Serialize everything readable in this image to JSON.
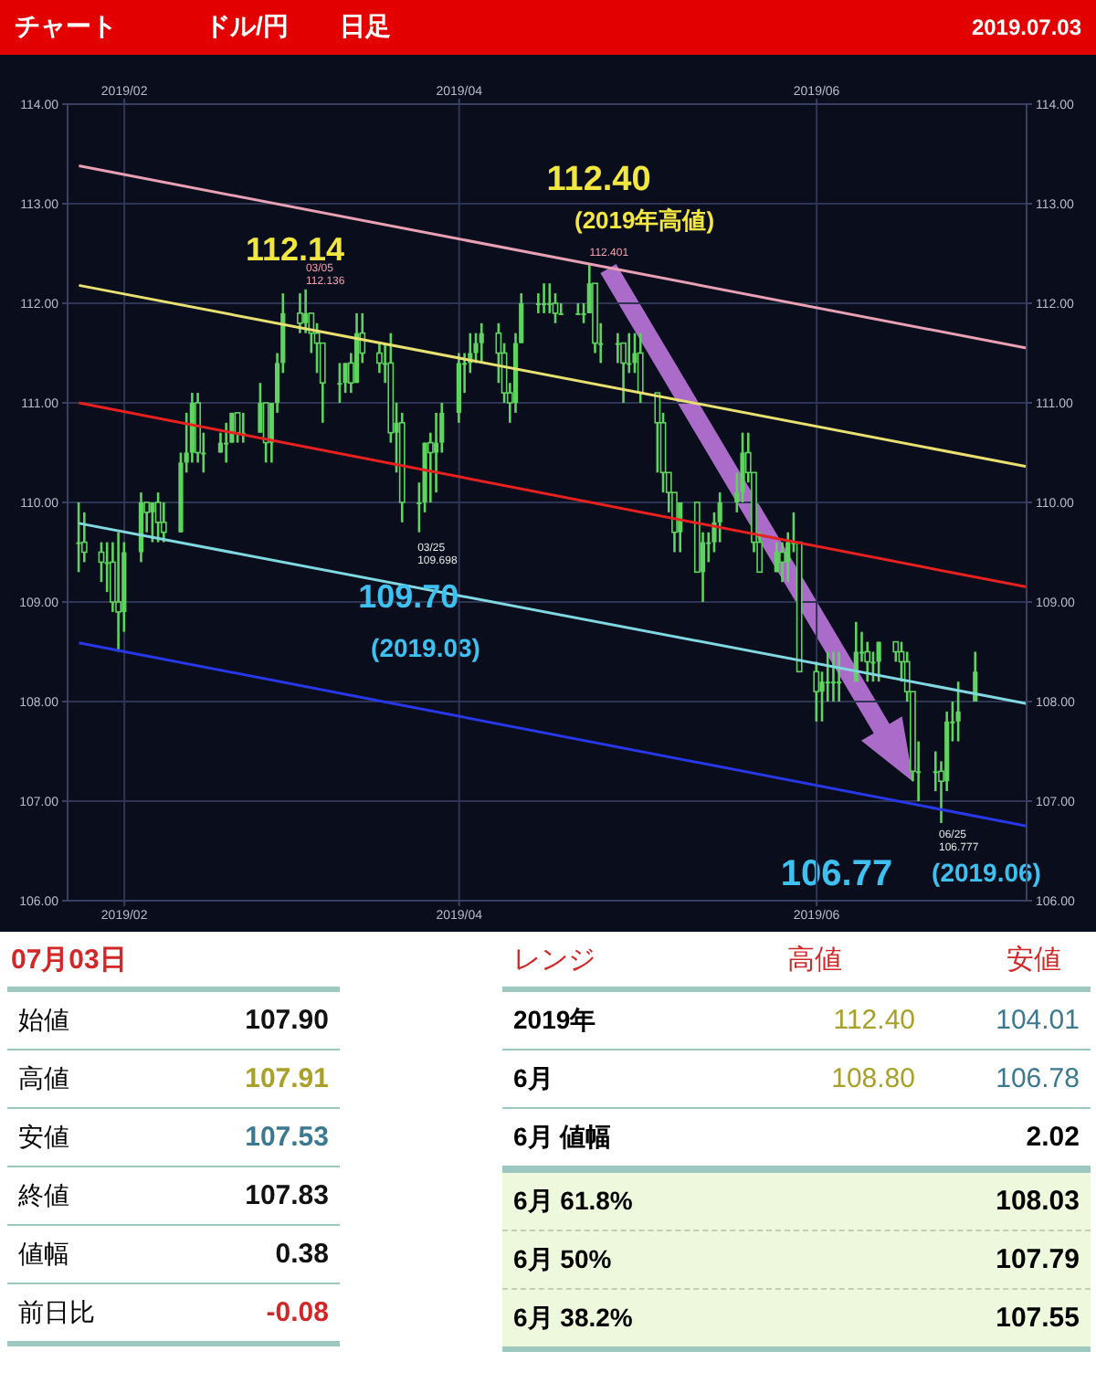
{
  "chart_data": {
    "type": "candlestick",
    "title": "ドル/円",
    "subtitle": "日足",
    "color": "#5fd35f",
    "x": [
      "2019-01-24",
      "2019-01-25",
      "2019-01-28",
      "2019-01-29",
      "2019-01-30",
      "2019-01-31",
      "2019-02-01",
      "2019-02-04",
      "2019-02-05",
      "2019-02-06",
      "2019-02-07",
      "2019-02-08",
      "2019-02-11",
      "2019-02-12",
      "2019-02-13",
      "2019-02-14",
      "2019-02-15",
      "2019-02-18",
      "2019-02-19",
      "2019-02-20",
      "2019-02-21",
      "2019-02-22",
      "2019-02-25",
      "2019-02-26",
      "2019-02-27",
      "2019-02-28",
      "2019-03-01",
      "2019-03-04",
      "2019-03-05",
      "2019-03-06",
      "2019-03-07",
      "2019-03-08",
      "2019-03-11",
      "2019-03-12",
      "2019-03-13",
      "2019-03-14",
      "2019-03-15",
      "2019-03-18",
      "2019-03-19",
      "2019-03-20",
      "2019-03-21",
      "2019-03-22",
      "2019-03-25",
      "2019-03-26",
      "2019-03-27",
      "2019-03-28",
      "2019-03-29",
      "2019-04-01",
      "2019-04-02",
      "2019-04-03",
      "2019-04-04",
      "2019-04-05",
      "2019-04-08",
      "2019-04-09",
      "2019-04-10",
      "2019-04-11",
      "2019-04-12",
      "2019-04-15",
      "2019-04-16",
      "2019-04-17",
      "2019-04-18",
      "2019-04-19",
      "2019-04-22",
      "2019-04-23",
      "2019-04-24",
      "2019-04-25",
      "2019-04-26",
      "2019-04-29",
      "2019-04-30",
      "2019-05-01",
      "2019-05-02",
      "2019-05-03",
      "2019-05-06",
      "2019-05-07",
      "2019-05-08",
      "2019-05-09",
      "2019-05-10",
      "2019-05-13",
      "2019-05-14",
      "2019-05-15",
      "2019-05-16",
      "2019-05-17",
      "2019-05-20",
      "2019-05-21",
      "2019-05-22",
      "2019-05-23",
      "2019-05-24",
      "2019-05-27",
      "2019-05-28",
      "2019-05-29",
      "2019-05-30",
      "2019-05-31",
      "2019-06-03",
      "2019-06-04",
      "2019-06-05",
      "2019-06-06",
      "2019-06-07",
      "2019-06-10",
      "2019-06-11",
      "2019-06-12",
      "2019-06-13",
      "2019-06-14",
      "2019-06-17",
      "2019-06-18",
      "2019-06-19",
      "2019-06-20",
      "2019-06-21",
      "2019-06-24",
      "2019-06-25",
      "2019-06-26",
      "2019-06-27",
      "2019-06-28",
      "2019-07-01"
    ],
    "ohlc": [
      [
        109.6,
        110.0,
        109.3,
        109.6
      ],
      [
        109.6,
        109.9,
        109.4,
        109.5
      ],
      [
        109.5,
        109.6,
        109.2,
        109.4
      ],
      [
        109.4,
        109.6,
        109.1,
        109.4
      ],
      [
        109.4,
        109.6,
        108.9,
        109.0
      ],
      [
        109.0,
        109.7,
        108.5,
        108.9
      ],
      [
        108.9,
        109.6,
        108.7,
        109.5
      ],
      [
        109.5,
        110.1,
        109.4,
        110.0
      ],
      [
        110.0,
        110.0,
        109.7,
        109.9
      ],
      [
        109.9,
        110.0,
        109.6,
        110.0
      ],
      [
        110.0,
        110.1,
        109.6,
        109.8
      ],
      [
        109.8,
        110.0,
        109.6,
        109.7
      ],
      [
        109.7,
        110.5,
        109.7,
        110.4
      ],
      [
        110.4,
        110.9,
        110.3,
        110.5
      ],
      [
        110.5,
        111.1,
        110.4,
        111.0
      ],
      [
        111.0,
        111.1,
        110.4,
        110.5
      ],
      [
        110.5,
        110.7,
        110.3,
        110.5
      ],
      [
        110.5,
        110.7,
        110.5,
        110.6
      ],
      [
        110.6,
        110.8,
        110.4,
        110.6
      ],
      [
        110.6,
        110.9,
        110.6,
        110.9
      ],
      [
        110.9,
        110.9,
        110.6,
        110.7
      ],
      [
        110.7,
        110.9,
        110.6,
        110.7
      ],
      [
        110.7,
        111.2,
        110.7,
        111.0
      ],
      [
        111.0,
        111.0,
        110.4,
        110.6
      ],
      [
        110.6,
        111.0,
        110.4,
        111.0
      ],
      [
        111.0,
        111.5,
        110.9,
        111.4
      ],
      [
        111.4,
        112.1,
        111.3,
        111.9
      ],
      [
        111.9,
        112.1,
        111.7,
        111.8
      ],
      [
        111.8,
        112.14,
        111.7,
        111.9
      ],
      [
        111.9,
        111.9,
        111.5,
        111.7
      ],
      [
        111.7,
        111.8,
        111.3,
        111.6
      ],
      [
        111.6,
        111.6,
        110.8,
        111.2
      ],
      [
        111.2,
        111.4,
        111.0,
        111.2
      ],
      [
        111.2,
        111.4,
        111.1,
        111.4
      ],
      [
        111.4,
        111.5,
        111.1,
        111.2
      ],
      [
        111.2,
        111.9,
        111.2,
        111.7
      ],
      [
        111.7,
        111.9,
        111.4,
        111.5
      ],
      [
        111.5,
        111.6,
        111.3,
        111.4
      ],
      [
        111.4,
        111.6,
        111.2,
        111.4
      ],
      [
        111.4,
        111.7,
        110.6,
        110.7
      ],
      [
        110.7,
        111.0,
        110.3,
        110.8
      ],
      [
        110.8,
        110.9,
        109.8,
        110.0
      ],
      [
        110.0,
        110.2,
        109.7,
        110.0
      ],
      [
        110.0,
        110.6,
        109.9,
        110.6
      ],
      [
        110.6,
        110.7,
        110.0,
        110.5
      ],
      [
        110.5,
        110.9,
        110.1,
        110.6
      ],
      [
        110.6,
        111.0,
        110.5,
        110.9
      ],
      [
        110.9,
        111.5,
        110.8,
        111.4
      ],
      [
        111.4,
        111.5,
        111.1,
        111.4
      ],
      [
        111.4,
        111.7,
        111.3,
        111.5
      ],
      [
        111.5,
        111.7,
        111.4,
        111.6
      ],
      [
        111.6,
        111.8,
        111.4,
        111.7
      ],
      [
        111.7,
        111.8,
        111.2,
        111.5
      ],
      [
        111.5,
        111.6,
        111.0,
        111.1
      ],
      [
        111.1,
        111.2,
        110.8,
        111.0
      ],
      [
        111.0,
        111.7,
        110.9,
        111.6
      ],
      [
        111.6,
        112.1,
        111.6,
        112.0
      ],
      [
        112.0,
        112.1,
        111.9,
        112.0
      ],
      [
        112.0,
        112.2,
        111.9,
        112.0
      ],
      [
        112.0,
        112.2,
        111.9,
        112.0
      ],
      [
        112.0,
        112.1,
        111.8,
        111.9
      ],
      [
        111.9,
        112.0,
        111.9,
        111.9
      ],
      [
        111.9,
        112.0,
        111.9,
        111.9
      ],
      [
        111.9,
        112.0,
        111.8,
        111.9
      ],
      [
        111.9,
        112.4,
        111.9,
        112.2
      ],
      [
        112.2,
        112.2,
        111.5,
        111.6
      ],
      [
        111.6,
        111.8,
        111.4,
        111.6
      ],
      [
        111.6,
        111.7,
        111.4,
        111.6
      ],
      [
        111.6,
        111.6,
        111.0,
        111.4
      ],
      [
        111.4,
        111.7,
        111.3,
        111.4
      ],
      [
        111.4,
        111.7,
        111.3,
        111.5
      ],
      [
        111.5,
        111.7,
        111.0,
        111.1
      ],
      [
        111.1,
        111.1,
        110.3,
        110.8
      ],
      [
        110.8,
        110.9,
        110.1,
        110.3
      ],
      [
        110.3,
        110.3,
        109.9,
        110.1
      ],
      [
        110.1,
        110.1,
        109.5,
        109.7
      ],
      [
        109.7,
        110.0,
        109.5,
        110.0
      ],
      [
        110.0,
        110.0,
        109.3,
        109.3
      ],
      [
        109.3,
        109.7,
        109.0,
        109.6
      ],
      [
        109.6,
        109.7,
        109.4,
        109.6
      ],
      [
        109.6,
        109.9,
        109.5,
        109.8
      ],
      [
        109.8,
        110.1,
        109.6,
        110.0
      ],
      [
        110.0,
        110.3,
        109.9,
        110.1
      ],
      [
        110.1,
        110.7,
        110.0,
        110.5
      ],
      [
        110.5,
        110.7,
        110.2,
        110.3
      ],
      [
        110.3,
        110.3,
        109.5,
        109.6
      ],
      [
        109.6,
        109.7,
        109.3,
        109.3
      ],
      [
        109.3,
        109.6,
        109.3,
        109.5
      ],
      [
        109.5,
        109.6,
        109.2,
        109.4
      ],
      [
        109.4,
        109.7,
        109.2,
        109.6
      ],
      [
        109.6,
        109.9,
        109.5,
        109.6
      ],
      [
        109.6,
        109.6,
        108.3,
        108.3
      ],
      [
        108.3,
        108.4,
        107.8,
        108.1
      ],
      [
        108.1,
        108.3,
        107.8,
        108.2
      ],
      [
        108.2,
        108.5,
        108.0,
        108.2
      ],
      [
        108.2,
        108.5,
        108.0,
        108.2
      ],
      [
        108.2,
        108.5,
        108.0,
        108.2
      ],
      [
        108.2,
        108.8,
        108.2,
        108.5
      ],
      [
        108.5,
        108.7,
        108.4,
        108.5
      ],
      [
        108.5,
        108.6,
        108.2,
        108.4
      ],
      [
        108.4,
        108.5,
        108.2,
        108.4
      ],
      [
        108.4,
        108.6,
        108.2,
        108.6
      ],
      [
        108.6,
        108.6,
        108.4,
        108.5
      ],
      [
        108.5,
        108.6,
        108.2,
        108.4
      ],
      [
        108.4,
        108.5,
        108.0,
        108.1
      ],
      [
        108.1,
        108.1,
        107.2,
        107.3
      ],
      [
        107.3,
        107.6,
        107.0,
        107.3
      ],
      [
        107.3,
        107.5,
        107.1,
        107.3
      ],
      [
        107.3,
        107.4,
        106.78,
        107.2
      ],
      [
        107.2,
        107.9,
        107.1,
        107.8
      ],
      [
        107.8,
        108.0,
        107.6,
        107.8
      ],
      [
        107.8,
        108.2,
        107.6,
        107.9
      ],
      [
        108.0,
        108.5,
        108.0,
        108.3
      ]
    ],
    "series": [
      {
        "type": "line",
        "color": "#e8a0b4",
        "x": [
          "2019-01-24",
          "2019-07-10"
        ],
        "values": [
          113.38,
          111.55
        ]
      },
      {
        "type": "line",
        "color": "#e8e070",
        "x": [
          "2019-01-24",
          "2019-07-10"
        ],
        "values": [
          112.18,
          110.36
        ]
      },
      {
        "type": "line",
        "color": "#e82020",
        "x": [
          "2019-01-24",
          "2019-07-10"
        ],
        "values": [
          111.0,
          109.15
        ]
      },
      {
        "type": "line",
        "color": "#80d8e0",
        "x": [
          "2019-01-24",
          "2019-07-10"
        ],
        "values": [
          109.79,
          107.98
        ]
      },
      {
        "type": "line",
        "color": "#2838e8",
        "x": [
          "2019-01-24",
          "2019-07-10"
        ],
        "values": [
          108.59,
          106.75
        ]
      }
    ],
    "xlim": [
      "2019-01-22",
      "2019-07-10"
    ],
    "xticks": [
      {
        "value": "2019-02-01",
        "label": "2019/02"
      },
      {
        "value": "2019-04-01",
        "label": "2019/04"
      },
      {
        "value": "2019-06-03",
        "label": "2019/06"
      }
    ],
    "x2lim": [
      "2019-01-22",
      "2019-07-10"
    ],
    "x2ticks": [
      {
        "value": "2019-02-01",
        "label": "2019/02"
      },
      {
        "value": "2019-04-01",
        "label": "2019/04"
      },
      {
        "value": "2019-06-03",
        "label": "2019/06"
      }
    ],
    "ylim": [
      106,
      114
    ],
    "yticks": [
      {
        "value": 106,
        "label": "106.00"
      },
      {
        "value": 107,
        "label": "107.00"
      },
      {
        "value": 108,
        "label": "108.00"
      },
      {
        "value": 109,
        "label": "109.00"
      },
      {
        "value": 110,
        "label": "110.00"
      },
      {
        "value": 111,
        "label": "111.00"
      },
      {
        "value": 112,
        "label": "112.00"
      },
      {
        "value": 113,
        "label": "113.00"
      },
      {
        "value": 114,
        "label": "114.00"
      }
    ],
    "y2lim": [
      106,
      114
    ],
    "y2ticks": [
      {
        "value": 106,
        "label": "106.00"
      },
      {
        "value": 107,
        "label": "107.00"
      },
      {
        "value": 108,
        "label": "108.00"
      },
      {
        "value": 109,
        "label": "109.00"
      },
      {
        "value": 110,
        "label": "110.00"
      },
      {
        "value": 111,
        "label": "111.00"
      },
      {
        "value": 112,
        "label": "112.00"
      },
      {
        "value": 113,
        "label": "113.00"
      },
      {
        "value": 114,
        "label": "114.00"
      }
    ],
    "grid": true,
    "annotations": [
      "チャート",
      "2019.07.03",
      {
        "text": "112.14",
        "x": "2019-03-05",
        "y": 112.14
      },
      {
        "text": "03/05",
        "x": "2019-03-05",
        "y": 112.14
      },
      {
        "text": "112.136",
        "x": "2019-03-05",
        "y": 112.14
      },
      {
        "text": "112.40",
        "x": "2019-04-24",
        "y": 112.4
      },
      {
        "text": "(2019年高値)",
        "x": "2019-04-24",
        "y": 112.4
      },
      {
        "text": "112.401",
        "x": "2019-04-24",
        "y": 112.4
      },
      {
        "text": "109.70",
        "x": "2019-03-25",
        "y": 109.7
      },
      "(2019.03)",
      {
        "text": "03/25",
        "x": "2019-03-25",
        "y": 109.7
      },
      {
        "text": "109.698",
        "x": "2019-03-25",
        "y": 109.7
      },
      "106.77",
      "(2019.06)",
      "06/25",
      "106.777",
      "07月03日",
      "始値",
      "107.90",
      "高値",
      "107.91",
      "安値",
      "107.53",
      "終値",
      "107.83",
      "値幅",
      "0.38",
      "前日比",
      "-0.08",
      "レンジ",
      "高値",
      "安値",
      "2019年",
      "112.40",
      "104.01",
      "6月",
      "108.80",
      "106.78",
      "6月 値幅",
      "2.02",
      "6月 61.8%",
      "108.03",
      "6月 50%",
      "107.79",
      "6月 38.2%",
      "107.55"
    ]
  }
}
